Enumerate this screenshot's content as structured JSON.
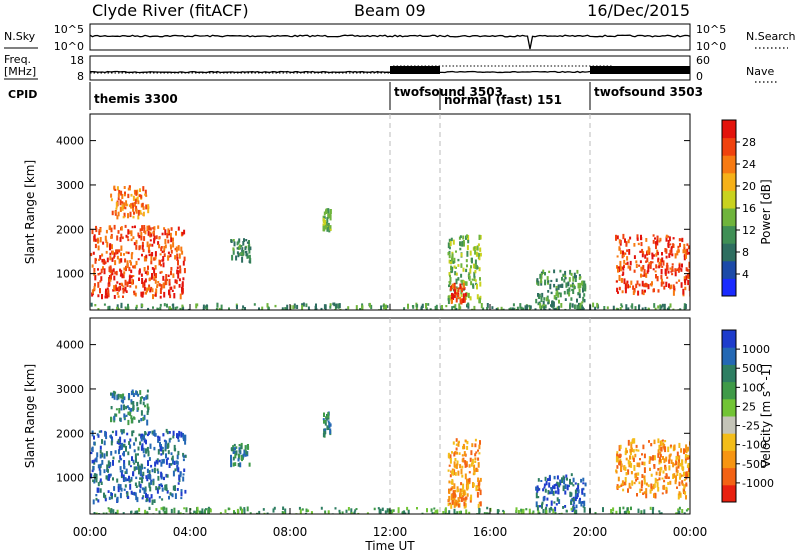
{
  "header": {
    "station": "Clyde River (fitACF)",
    "beam": "Beam 09",
    "date": "16/Dec/2015"
  },
  "nsky_panel": {
    "label": "N.Sky",
    "right_label": "N.Search",
    "ticks_left": [
      "10^5",
      "10^0"
    ],
    "ticks_right": [
      "10^5",
      "10^0"
    ]
  },
  "freq_panel": {
    "label_line1": "Freq.",
    "label_line2": "[MHz]",
    "right_label": "Nave",
    "ticks_left": [
      "18",
      "8"
    ],
    "ticks_right": [
      "60",
      "0"
    ]
  },
  "cpid": {
    "label": "CPID",
    "modes": [
      {
        "name": "themis 3300",
        "start_h": 0
      },
      {
        "name": "twofsound 3503",
        "start_h": 12
      },
      {
        "name": "normal (fast) 151",
        "start_h": 14
      },
      {
        "name": "twofsound 3503",
        "start_h": 20
      }
    ]
  },
  "axes": {
    "ylabel": "Slant Range [km]",
    "xlabel": "Time UT",
    "x_ticks": [
      "00:00",
      "04:00",
      "08:00",
      "12:00",
      "16:00",
      "20:00",
      "00:00"
    ],
    "y_ticks": [
      "1000",
      "2000",
      "3000",
      "4000"
    ]
  },
  "colorbars": {
    "power": {
      "label": "Power [dB]",
      "ticks": [
        "4",
        "8",
        "12",
        "16",
        "20",
        "24",
        "28"
      ],
      "colors": [
        "#1a2bff",
        "#1c4aa8",
        "#2e6e60",
        "#3f8f55",
        "#6fb43c",
        "#c9d21e",
        "#f6b119",
        "#f77a12",
        "#f0420e",
        "#e3130c"
      ]
    },
    "velocity": {
      "label": "Velocity [m s^-1]",
      "ticks": [
        "1000",
        "500",
        "100",
        "25",
        "-25",
        "-100",
        "-500",
        "-1000"
      ],
      "colors": [
        "#1e3ccc",
        "#2468b4",
        "#2e7e62",
        "#3f9a48",
        "#72c435",
        "#c4c4b8",
        "#f3bd1a",
        "#f79512",
        "#f36214",
        "#e8200f"
      ]
    }
  },
  "chart_data": {
    "type": "heatmap",
    "x_range_hours": [
      0,
      24
    ],
    "y_range_km": [
      180,
      4600
    ],
    "grid": "dashed vertical lines at 12:00, 14:00 and 20:00 UT",
    "echo_regions": [
      {
        "t0": 0.0,
        "t1": 3.8,
        "r0": 500,
        "r1": 2100,
        "power_db": 26,
        "velocity": 700
      },
      {
        "t0": 0.8,
        "t1": 2.3,
        "r0": 2300,
        "r1": 3000,
        "power_db": 22,
        "velocity": 300
      },
      {
        "t0": 5.6,
        "t1": 6.4,
        "r0": 1300,
        "r1": 1800,
        "power_db": 10,
        "velocity": 150
      },
      {
        "t0": 9.3,
        "t1": 9.6,
        "r0": 2000,
        "r1": 2500,
        "power_db": 12,
        "velocity": 100
      },
      {
        "t0": 14.3,
        "t1": 15.6,
        "r0": 400,
        "r1": 1900,
        "power_db": 14,
        "velocity": -300
      },
      {
        "t0": 14.3,
        "t1": 15.0,
        "r0": 400,
        "r1": 800,
        "power_db": 24,
        "velocity": -150
      },
      {
        "t0": 17.8,
        "t1": 19.8,
        "r0": 300,
        "r1": 1100,
        "power_db": 8,
        "velocity": 400
      },
      {
        "t0": 21.0,
        "t1": 24.0,
        "r0": 600,
        "r1": 1900,
        "power_db": 26,
        "velocity": -300
      },
      {
        "t0": 0.0,
        "t1": 24.0,
        "r0": 180,
        "r1": 350,
        "power_db": 8,
        "velocity": 50
      }
    ]
  }
}
